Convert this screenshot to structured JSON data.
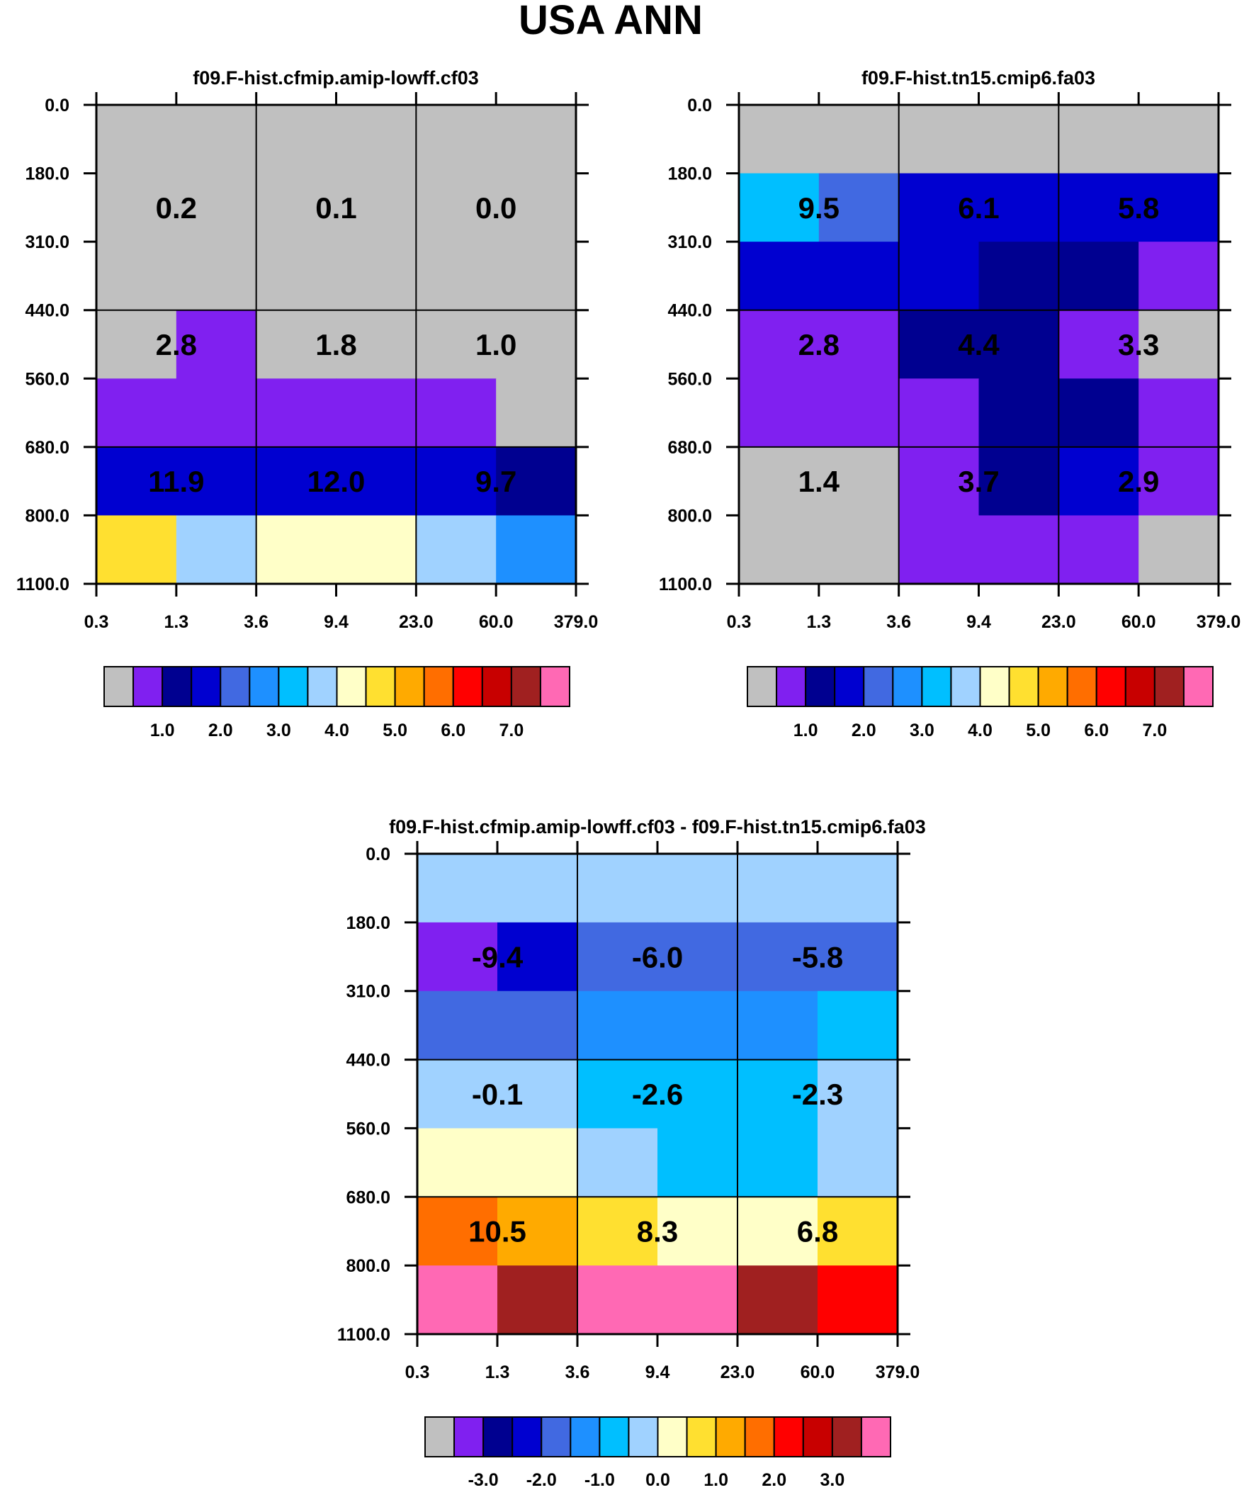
{
  "page_title": "USA ANN",
  "colors": {
    "palette": [
      "#c0c0c0",
      "#8020f0",
      "#000090",
      "#0000d0",
      "#4169e1",
      "#1e90ff",
      "#00bfff",
      "#a0d2ff",
      "#ffffc8",
      "#ffe030",
      "#ffaa00",
      "#ff6e00",
      "#ff0000",
      "#c80000",
      "#a02020",
      "#ff69b4"
    ]
  },
  "chart_data": [
    {
      "type": "heatmap",
      "title": "f09.F-hist.cfmip.amip-lowff.cf03",
      "x_tick_labels": [
        "0.3",
        "1.3",
        "3.6",
        "9.4",
        "23.0",
        "60.0",
        "379.0"
      ],
      "y_tick_labels": [
        "0.0",
        "180.0",
        "310.0",
        "440.0",
        "560.0",
        "680.0",
        "800.0",
        "1100.0"
      ],
      "box_values": [
        [
          "0.2",
          "0.1",
          "0.0"
        ],
        [
          "2.8",
          "1.8",
          "1.0"
        ],
        [
          "11.9",
          "12.0",
          "9.7"
        ]
      ],
      "cell_color_index": [
        [
          0,
          0,
          0,
          0,
          0,
          0
        ],
        [
          0,
          0,
          0,
          0,
          0,
          0
        ],
        [
          0,
          0,
          0,
          0,
          0,
          0
        ],
        [
          0,
          1,
          0,
          0,
          0,
          0
        ],
        [
          1,
          1,
          1,
          1,
          1,
          0
        ],
        [
          3,
          3,
          3,
          3,
          3,
          2
        ],
        [
          9,
          7,
          8,
          8,
          7,
          5
        ]
      ],
      "colorbar": {
        "tick_labels": [
          "1.0",
          "2.0",
          "3.0",
          "4.0",
          "5.0",
          "6.0",
          "7.0"
        ]
      }
    },
    {
      "type": "heatmap",
      "title": "f09.F-hist.tn15.cmip6.fa03",
      "x_tick_labels": [
        "0.3",
        "1.3",
        "3.6",
        "9.4",
        "23.0",
        "60.0",
        "379.0"
      ],
      "y_tick_labels": [
        "0.0",
        "180.0",
        "310.0",
        "440.0",
        "560.0",
        "680.0",
        "800.0",
        "1100.0"
      ],
      "box_values": [
        [
          "9.5",
          "6.1",
          "5.8"
        ],
        [
          "2.8",
          "4.4",
          "3.3"
        ],
        [
          "1.4",
          "3.7",
          "2.9"
        ]
      ],
      "cell_color_index": [
        [
          0,
          0,
          0,
          0,
          0,
          0
        ],
        [
          6,
          4,
          3,
          3,
          3,
          3
        ],
        [
          3,
          3,
          3,
          2,
          2,
          1
        ],
        [
          1,
          1,
          2,
          2,
          1,
          0
        ],
        [
          1,
          1,
          1,
          2,
          2,
          1
        ],
        [
          0,
          0,
          1,
          2,
          3,
          1
        ],
        [
          0,
          0,
          1,
          1,
          1,
          0
        ]
      ],
      "colorbar": {
        "tick_labels": [
          "1.0",
          "2.0",
          "3.0",
          "4.0",
          "5.0",
          "6.0",
          "7.0"
        ]
      }
    },
    {
      "type": "heatmap",
      "title": "f09.F-hist.cfmip.amip-lowff.cf03 - f09.F-hist.tn15.cmip6.fa03",
      "x_tick_labels": [
        "0.3",
        "1.3",
        "3.6",
        "9.4",
        "23.0",
        "60.0",
        "379.0"
      ],
      "y_tick_labels": [
        "0.0",
        "180.0",
        "310.0",
        "440.0",
        "560.0",
        "680.0",
        "800.0",
        "1100.0"
      ],
      "box_values": [
        [
          "-9.4",
          "-6.0",
          "-5.8"
        ],
        [
          "-0.1",
          "-2.6",
          "-2.3"
        ],
        [
          "10.5",
          "8.3",
          "6.8"
        ]
      ],
      "cell_color_index": [
        [
          7,
          7,
          7,
          7,
          7,
          7
        ],
        [
          1,
          3,
          4,
          4,
          4,
          4
        ],
        [
          4,
          4,
          5,
          5,
          5,
          6
        ],
        [
          7,
          7,
          6,
          6,
          6,
          7
        ],
        [
          8,
          8,
          7,
          6,
          6,
          7
        ],
        [
          11,
          10,
          9,
          8,
          8,
          9
        ],
        [
          15,
          14,
          15,
          15,
          14,
          12
        ]
      ],
      "colorbar": {
        "tick_labels": [
          "-3.0",
          "-2.0",
          "-1.0",
          "0.0",
          "1.0",
          "2.0",
          "3.0"
        ]
      }
    }
  ]
}
